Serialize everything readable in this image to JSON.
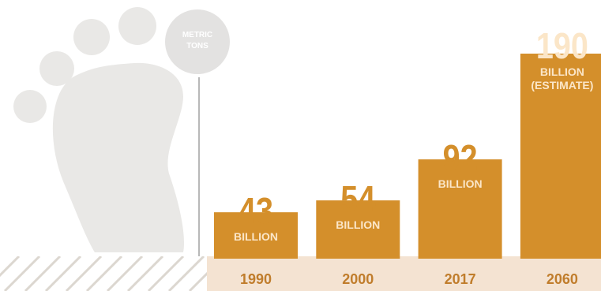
{
  "unit_badge": {
    "line1": "METRIC",
    "line2": "TONS"
  },
  "colors": {
    "bar": "#d48f2b",
    "value_text": "#d48f2b",
    "label_on_bar": "#fbe6c8",
    "axis_band": "#f4e3d2",
    "axis_text": "#c07d2c",
    "footprint": "#e9e8e6",
    "badge": "#e3e2e1",
    "badge_text": "#ffffff",
    "axis_line": "#b8b8b8",
    "hatch": "#dcd7d0"
  },
  "chart_data": {
    "type": "bar",
    "categories": [
      "1990",
      "2000",
      "2017",
      "2060"
    ],
    "values": [
      43,
      54,
      92,
      190
    ],
    "value_labels": [
      "43",
      "54",
      "92",
      "190"
    ],
    "bar_labels": [
      [
        "BILLION"
      ],
      [
        "BILLION"
      ],
      [
        "BILLION"
      ],
      [
        "BILLION",
        "(ESTIMATE)"
      ]
    ],
    "ylim": [
      0,
      190
    ],
    "grid": false,
    "legend": "none"
  }
}
